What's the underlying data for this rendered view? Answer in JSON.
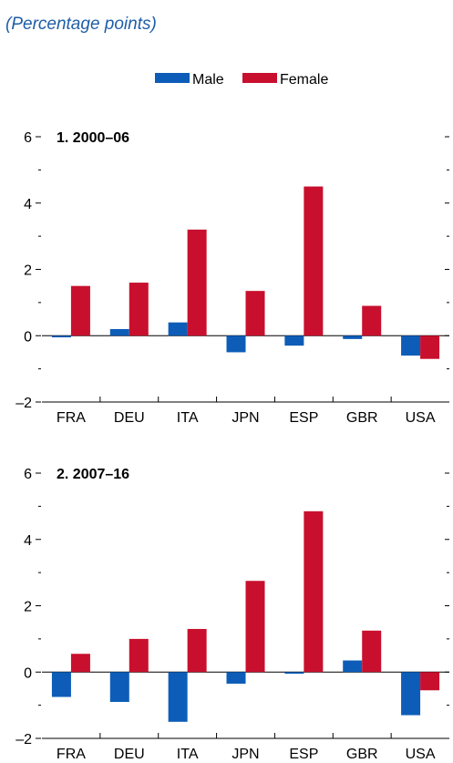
{
  "subtitle": "(Percentage points)",
  "chart_data": {
    "type": "bar",
    "legend": [
      {
        "name": "Male",
        "color": "#0d5db8"
      },
      {
        "name": "Female",
        "color": "#c8102e"
      }
    ],
    "legend_position": "top-center",
    "ylim": [
      -2,
      6
    ],
    "yticks": [
      -2,
      0,
      2,
      4,
      6
    ],
    "ytick_labels": [
      "–2",
      "0",
      "2",
      "4",
      "6"
    ],
    "categories": [
      "FRA",
      "DEU",
      "ITA",
      "JPN",
      "ESP",
      "GBR",
      "USA"
    ],
    "panels": [
      {
        "title": "1. 2000–06",
        "series": [
          {
            "name": "Male",
            "values": [
              -0.05,
              0.2,
              0.4,
              -0.5,
              -0.3,
              -0.1,
              -0.6
            ]
          },
          {
            "name": "Female",
            "values": [
              1.5,
              1.6,
              3.2,
              1.35,
              4.5,
              0.9,
              -0.7
            ]
          }
        ]
      },
      {
        "title": "2. 2007–16",
        "series": [
          {
            "name": "Male",
            "values": [
              -0.75,
              -0.9,
              -1.5,
              -0.35,
              -0.05,
              0.35,
              -1.3
            ]
          },
          {
            "name": "Female",
            "values": [
              0.55,
              1.0,
              1.3,
              2.75,
              4.85,
              1.25,
              -0.55
            ]
          }
        ]
      }
    ]
  }
}
